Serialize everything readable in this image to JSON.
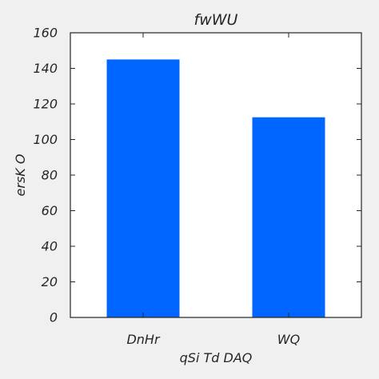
{
  "chart_data": {
    "type": "bar",
    "title": "fwWU",
    "xlabel": "qSi Td DAQ",
    "ylabel": "ersK O",
    "categories": [
      "DnHr",
      "WQ"
    ],
    "values": [
      145,
      112.5
    ],
    "ylim": [
      0,
      160
    ],
    "yticks": [
      0,
      20,
      40,
      60,
      80,
      100,
      120,
      140,
      160
    ],
    "bar_color": "#0066ff",
    "grid": false,
    "legend": "none"
  },
  "colors": {
    "background": "#f0f0f0",
    "plot_background": "#ffffff",
    "axis": "#262626"
  }
}
